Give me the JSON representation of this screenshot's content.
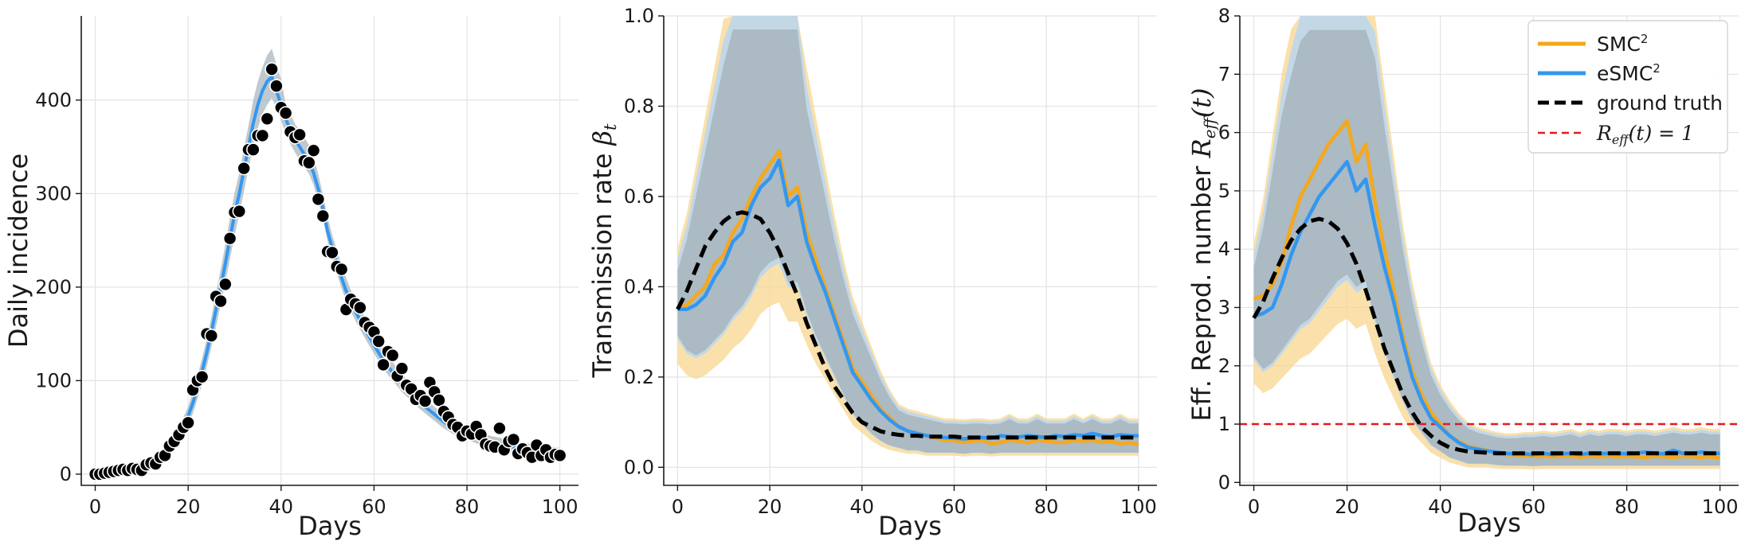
{
  "chart_data": [
    {
      "type": "scatter",
      "id": "incidence",
      "xlabel": "Days",
      "ylabel": "Daily incidence",
      "xlim": [
        -3,
        104
      ],
      "ylim": [
        -12,
        490
      ],
      "xticks": [
        0,
        20,
        40,
        60,
        80,
        100
      ],
      "xtick_labels": [
        "0",
        "20",
        "40",
        "60",
        "80",
        "100"
      ],
      "yticks": [
        0,
        100,
        200,
        300,
        400
      ],
      "ytick_labels": [
        "0",
        "100",
        "200",
        "300",
        "400"
      ],
      "colors": {
        "fit": "#3397f0",
        "band": "#a9b7bf",
        "points": "#000000"
      },
      "x": [
        0,
        1,
        2,
        3,
        4,
        5,
        6,
        7,
        8,
        9,
        10,
        11,
        12,
        13,
        14,
        15,
        16,
        17,
        18,
        19,
        20,
        21,
        22,
        23,
        24,
        25,
        26,
        27,
        28,
        29,
        30,
        31,
        32,
        33,
        34,
        35,
        36,
        37,
        38,
        39,
        40,
        41,
        42,
        43,
        44,
        45,
        46,
        47,
        48,
        49,
        50,
        51,
        52,
        53,
        54,
        55,
        56,
        57,
        58,
        59,
        60,
        61,
        62,
        63,
        64,
        65,
        66,
        67,
        68,
        69,
        70,
        71,
        72,
        73,
        74,
        75,
        76,
        77,
        78,
        79,
        80,
        81,
        82,
        83,
        84,
        85,
        86,
        87,
        88,
        89,
        90,
        91,
        92,
        93,
        94,
        95,
        96,
        97,
        98,
        99,
        100
      ],
      "observed": [
        0,
        0,
        1,
        2,
        3,
        4,
        5,
        4,
        6,
        5,
        4,
        10,
        12,
        11,
        18,
        20,
        30,
        35,
        42,
        50,
        55,
        90,
        100,
        104,
        150,
        148,
        190,
        185,
        203,
        252,
        280,
        281,
        327,
        347,
        347,
        362,
        362,
        380,
        433,
        415,
        392,
        386,
        366,
        360,
        363,
        335,
        333,
        346,
        294,
        276,
        238,
        237,
        222,
        219,
        176,
        187,
        182,
        178,
        162,
        157,
        152,
        142,
        117,
        131,
        127,
        105,
        113,
        95,
        91,
        80,
        84,
        78,
        98,
        88,
        79,
        67,
        61,
        53,
        50,
        41,
        46,
        43,
        51,
        42,
        32,
        30,
        29,
        49,
        26,
        35,
        37,
        22,
        27,
        23,
        18,
        31,
        20,
        26,
        18,
        21,
        20
      ],
      "fit": [
        0,
        1,
        2,
        3,
        4,
        5,
        6,
        7,
        8,
        9,
        10,
        12,
        14,
        17,
        20,
        25,
        30,
        36,
        44,
        52,
        62,
        76,
        92,
        110,
        130,
        152,
        176,
        200,
        225,
        252,
        278,
        300,
        325,
        350,
        375,
        395,
        410,
        420,
        425,
        410,
        395,
        380,
        368,
        358,
        350,
        342,
        334,
        322,
        305,
        284,
        260,
        242,
        226,
        210,
        196,
        184,
        174,
        165,
        156,
        147,
        138,
        130,
        122,
        115,
        109,
        103,
        97,
        92,
        87,
        82,
        77,
        72,
        68,
        64,
        60,
        56,
        53,
        50,
        47,
        45,
        43,
        41,
        39,
        37,
        35,
        34,
        33,
        32,
        31,
        30,
        29,
        28,
        27,
        26,
        25,
        24,
        24,
        23,
        22,
        22,
        21
      ],
      "fit_lower": [
        0,
        0,
        1,
        2,
        3,
        3,
        4,
        5,
        6,
        7,
        8,
        9,
        11,
        13,
        16,
        20,
        24,
        29,
        36,
        43,
        52,
        65,
        80,
        96,
        115,
        136,
        158,
        181,
        205,
        230,
        255,
        278,
        302,
        327,
        350,
        370,
        385,
        395,
        402,
        392,
        378,
        364,
        353,
        344,
        336,
        328,
        321,
        309,
        292,
        272,
        249,
        231,
        215,
        199,
        185,
        174,
        164,
        155,
        146,
        137,
        129,
        121,
        113,
        106,
        100,
        94,
        88,
        83,
        79,
        74,
        69,
        65,
        61,
        57,
        53,
        49,
        46,
        43,
        41,
        39,
        37,
        35,
        33,
        31,
        29,
        28,
        27,
        26,
        25,
        24,
        23,
        22,
        21,
        20,
        19,
        18,
        18,
        17,
        16,
        16,
        15
      ],
      "fit_upper": [
        1,
        2,
        3,
        4,
        6,
        7,
        8,
        9,
        11,
        12,
        13,
        15,
        18,
        21,
        25,
        30,
        36,
        43,
        52,
        61,
        72,
        88,
        105,
        124,
        145,
        168,
        194,
        219,
        245,
        274,
        301,
        322,
        348,
        373,
        400,
        420,
        435,
        448,
        455,
        438,
        422,
        396,
        386,
        374,
        368,
        360,
        352,
        339,
        321,
        299,
        275,
        256,
        240,
        224,
        210,
        197,
        187,
        177,
        168,
        159,
        150,
        142,
        134,
        126,
        120,
        113,
        107,
        102,
        96,
        91,
        86,
        81,
        76,
        72,
        68,
        64,
        60,
        57,
        54,
        52,
        50,
        48,
        46,
        44,
        42,
        41,
        40,
        39,
        38,
        37,
        36,
        35,
        34,
        33,
        32,
        31,
        31,
        30,
        29,
        29,
        28
      ]
    },
    {
      "type": "line",
      "id": "transmission",
      "xlabel": "Days",
      "ylabel_text": "Transmission rate ",
      "ylabel_math": "β",
      "ylabel_sub": "t",
      "xlim": [
        -3,
        104
      ],
      "ylim": [
        -0.04,
        1.0
      ],
      "xticks": [
        0,
        20,
        40,
        60,
        80,
        100
      ],
      "xtick_labels": [
        "0",
        "20",
        "40",
        "60",
        "80",
        "100"
      ],
      "yticks": [
        0.0,
        0.2,
        0.4,
        0.6,
        0.8,
        1.0
      ],
      "ytick_labels": [
        "0.0",
        "0.2",
        "0.4",
        "0.6",
        "0.8",
        "1.0"
      ],
      "colors": {
        "smc2": "#f5a81c",
        "esmc2": "#3397f0",
        "truth": "#000000",
        "band_smc2": "#f8d58e",
        "band_overlap": "#a9b7bf",
        "band_esmc2": "#b9d6f2"
      },
      "x": [
        0,
        2,
        4,
        6,
        8,
        10,
        12,
        14,
        16,
        18,
        20,
        22,
        24,
        26,
        28,
        30,
        32,
        34,
        36,
        38,
        40,
        42,
        44,
        46,
        48,
        50,
        52,
        54,
        56,
        58,
        60,
        62,
        64,
        66,
        68,
        70,
        72,
        74,
        76,
        78,
        80,
        82,
        84,
        86,
        88,
        90,
        92,
        94,
        96,
        98,
        100
      ],
      "series": [
        {
          "name": "SMC²",
          "values": [
            0.35,
            0.36,
            0.38,
            0.4,
            0.45,
            0.47,
            0.52,
            0.55,
            0.6,
            0.64,
            0.67,
            0.7,
            0.6,
            0.62,
            0.52,
            0.46,
            0.4,
            0.34,
            0.28,
            0.22,
            0.19,
            0.16,
            0.13,
            0.11,
            0.09,
            0.08,
            0.075,
            0.07,
            0.065,
            0.06,
            0.06,
            0.055,
            0.058,
            0.06,
            0.052,
            0.055,
            0.06,
            0.058,
            0.054,
            0.06,
            0.058,
            0.055,
            0.055,
            0.06,
            0.058,
            0.06,
            0.055,
            0.058,
            0.052,
            0.055,
            0.05
          ]
        },
        {
          "name": "eSMC²",
          "values": [
            0.35,
            0.35,
            0.36,
            0.38,
            0.42,
            0.45,
            0.5,
            0.52,
            0.58,
            0.62,
            0.64,
            0.68,
            0.58,
            0.6,
            0.5,
            0.44,
            0.39,
            0.33,
            0.27,
            0.21,
            0.18,
            0.15,
            0.125,
            0.105,
            0.09,
            0.08,
            0.075,
            0.07,
            0.068,
            0.066,
            0.065,
            0.063,
            0.065,
            0.066,
            0.064,
            0.07,
            0.068,
            0.067,
            0.07,
            0.068,
            0.066,
            0.07,
            0.068,
            0.072,
            0.07,
            0.075,
            0.07,
            0.068,
            0.072,
            0.07,
            0.07
          ]
        },
        {
          "name": "ground truth",
          "values": [
            0.35,
            0.39,
            0.44,
            0.49,
            0.52,
            0.545,
            0.56,
            0.565,
            0.56,
            0.55,
            0.52,
            0.48,
            0.43,
            0.38,
            0.32,
            0.27,
            0.22,
            0.18,
            0.15,
            0.12,
            0.1,
            0.09,
            0.08,
            0.075,
            0.072,
            0.07,
            0.07,
            0.068,
            0.068,
            0.068,
            0.068,
            0.066,
            0.066,
            0.066,
            0.066,
            0.066,
            0.066,
            0.066,
            0.066,
            0.066,
            0.066,
            0.066,
            0.066,
            0.066,
            0.066,
            0.066,
            0.066,
            0.066,
            0.066,
            0.066,
            0.066
          ]
        }
      ],
      "band_lower": [
        0.27,
        0.24,
        0.23,
        0.24,
        0.26,
        0.28,
        0.31,
        0.33,
        0.36,
        0.4,
        0.42,
        0.43,
        0.38,
        0.38,
        0.32,
        0.27,
        0.23,
        0.19,
        0.15,
        0.11,
        0.09,
        0.07,
        0.055,
        0.045,
        0.04,
        0.035,
        0.035,
        0.03,
        0.03,
        0.03,
        0.03,
        0.028,
        0.03,
        0.03,
        0.028,
        0.03,
        0.03,
        0.03,
        0.03,
        0.03,
        0.03,
        0.03,
        0.03,
        0.03,
        0.03,
        0.03,
        0.03,
        0.03,
        0.03,
        0.03,
        0.03
      ],
      "band_upper": [
        0.45,
        0.52,
        0.62,
        0.72,
        0.82,
        0.92,
        1.0,
        1.0,
        1.0,
        1.0,
        1.0,
        1.0,
        1.0,
        1.0,
        0.82,
        0.72,
        0.62,
        0.52,
        0.43,
        0.35,
        0.3,
        0.25,
        0.2,
        0.16,
        0.13,
        0.12,
        0.115,
        0.11,
        0.105,
        0.1,
        0.1,
        0.098,
        0.1,
        0.1,
        0.098,
        0.1,
        0.11,
        0.1,
        0.1,
        0.11,
        0.1,
        0.1,
        0.1,
        0.11,
        0.1,
        0.11,
        0.1,
        0.1,
        0.11,
        0.1,
        0.1
      ]
    },
    {
      "type": "line",
      "id": "reff",
      "xlabel": "Days",
      "ylabel_text": "Eff. Reprod. number ",
      "ylabel_math": "R",
      "ylabel_sub": "eff",
      "ylabel_suffix": "(t)",
      "xlim": [
        -3,
        104
      ],
      "ylim": [
        -0.05,
        8
      ],
      "xticks": [
        0,
        20,
        40,
        60,
        80,
        100
      ],
      "xtick_labels": [
        "0",
        "20",
        "40",
        "60",
        "80",
        "100"
      ],
      "yticks": [
        0,
        1,
        2,
        3,
        4,
        5,
        6,
        7,
        8
      ],
      "ytick_labels": [
        "0",
        "1",
        "2",
        "3",
        "4",
        "5",
        "6",
        "7",
        "8"
      ],
      "colors": {
        "smc2": "#f5a81c",
        "esmc2": "#3397f0",
        "truth": "#000000",
        "threshold": "#e31a1c",
        "band_smc2": "#f8d58e",
        "band_overlap": "#a9b7bf",
        "band_esmc2": "#b9d6f2"
      },
      "threshold": 1,
      "x": [
        0,
        2,
        4,
        6,
        8,
        10,
        12,
        14,
        16,
        18,
        20,
        22,
        24,
        26,
        28,
        30,
        32,
        34,
        36,
        38,
        40,
        42,
        44,
        46,
        48,
        50,
        52,
        54,
        56,
        58,
        60,
        62,
        64,
        66,
        68,
        70,
        72,
        74,
        76,
        78,
        80,
        82,
        84,
        86,
        88,
        90,
        92,
        94,
        96,
        98,
        100
      ],
      "series": [
        {
          "name": "SMC²",
          "values": [
            3.15,
            3.2,
            3.4,
            3.8,
            4.4,
            4.9,
            5.2,
            5.5,
            5.8,
            6.0,
            6.2,
            5.5,
            5.8,
            4.8,
            4.0,
            3.3,
            2.5,
            1.9,
            1.5,
            1.2,
            1.0,
            0.8,
            0.7,
            0.62,
            0.58,
            0.55,
            0.5,
            0.48,
            0.47,
            0.46,
            0.45,
            0.45,
            0.44,
            0.45,
            0.45,
            0.43,
            0.45,
            0.44,
            0.45,
            0.44,
            0.45,
            0.44,
            0.43,
            0.45,
            0.44,
            0.43,
            0.45,
            0.44,
            0.43,
            0.44,
            0.42
          ]
        },
        {
          "name": "eSMC²",
          "values": [
            2.85,
            2.9,
            3.0,
            3.4,
            3.9,
            4.3,
            4.6,
            4.9,
            5.1,
            5.3,
            5.5,
            5.0,
            5.2,
            4.4,
            3.7,
            3.1,
            2.4,
            1.8,
            1.4,
            1.1,
            0.95,
            0.8,
            0.68,
            0.6,
            0.57,
            0.54,
            0.52,
            0.5,
            0.49,
            0.49,
            0.48,
            0.5,
            0.48,
            0.49,
            0.5,
            0.48,
            0.5,
            0.49,
            0.5,
            0.5,
            0.49,
            0.5,
            0.52,
            0.5,
            0.49,
            0.55,
            0.5,
            0.5,
            0.52,
            0.5,
            0.5
          ]
        },
        {
          "name": "ground truth",
          "values": [
            2.82,
            3.1,
            3.5,
            3.85,
            4.15,
            4.35,
            4.48,
            4.52,
            4.48,
            4.35,
            4.1,
            3.75,
            3.3,
            2.8,
            2.3,
            1.9,
            1.5,
            1.2,
            0.95,
            0.8,
            0.68,
            0.6,
            0.56,
            0.53,
            0.52,
            0.51,
            0.5,
            0.5,
            0.5,
            0.5,
            0.5,
            0.5,
            0.5,
            0.5,
            0.5,
            0.5,
            0.5,
            0.5,
            0.5,
            0.5,
            0.5,
            0.5,
            0.5,
            0.5,
            0.5,
            0.5,
            0.5,
            0.5,
            0.5,
            0.5,
            0.5
          ]
        }
      ],
      "band_lower": [
        2.0,
        1.8,
        1.9,
        2.1,
        2.3,
        2.5,
        2.6,
        2.8,
        3.0,
        3.2,
        3.3,
        3.1,
        3.2,
        2.6,
        2.1,
        1.7,
        1.3,
        1.0,
        0.8,
        0.6,
        0.5,
        0.4,
        0.35,
        0.3,
        0.3,
        0.3,
        0.28,
        0.27,
        0.27,
        0.27,
        0.26,
        0.27,
        0.27,
        0.27,
        0.27,
        0.27,
        0.27,
        0.27,
        0.27,
        0.27,
        0.27,
        0.27,
        0.27,
        0.27,
        0.27,
        0.27,
        0.27,
        0.27,
        0.27,
        0.27,
        0.27
      ],
      "band_upper": [
        3.8,
        4.5,
        5.5,
        6.5,
        7.2,
        7.8,
        8.0,
        8.0,
        8.0,
        8.0,
        8.0,
        8.0,
        8.0,
        7.5,
        6.3,
        5.2,
        4.1,
        3.2,
        2.5,
        1.9,
        1.55,
        1.3,
        1.1,
        0.95,
        0.88,
        0.84,
        0.8,
        0.78,
        0.78,
        0.8,
        0.8,
        0.82,
        0.8,
        0.82,
        0.85,
        0.8,
        0.85,
        0.82,
        0.85,
        0.85,
        0.82,
        0.85,
        0.85,
        0.82,
        0.85,
        0.88,
        0.85,
        0.85,
        0.88,
        0.85,
        0.85
      ]
    }
  ],
  "legend": {
    "placement": "top-right",
    "entries": [
      {
        "label": "SMC",
        "sup": "2",
        "color": "#f5a81c",
        "style": "solid"
      },
      {
        "label": "eSMC",
        "sup": "2",
        "color": "#3397f0",
        "style": "solid"
      },
      {
        "label": "ground truth",
        "sup": "",
        "color": "#000000",
        "style": "dashed"
      },
      {
        "label": "R",
        "sub": "eff",
        "suffix": "(t) = 1",
        "color": "#e31a1c",
        "style": "dashed-thin"
      }
    ]
  }
}
